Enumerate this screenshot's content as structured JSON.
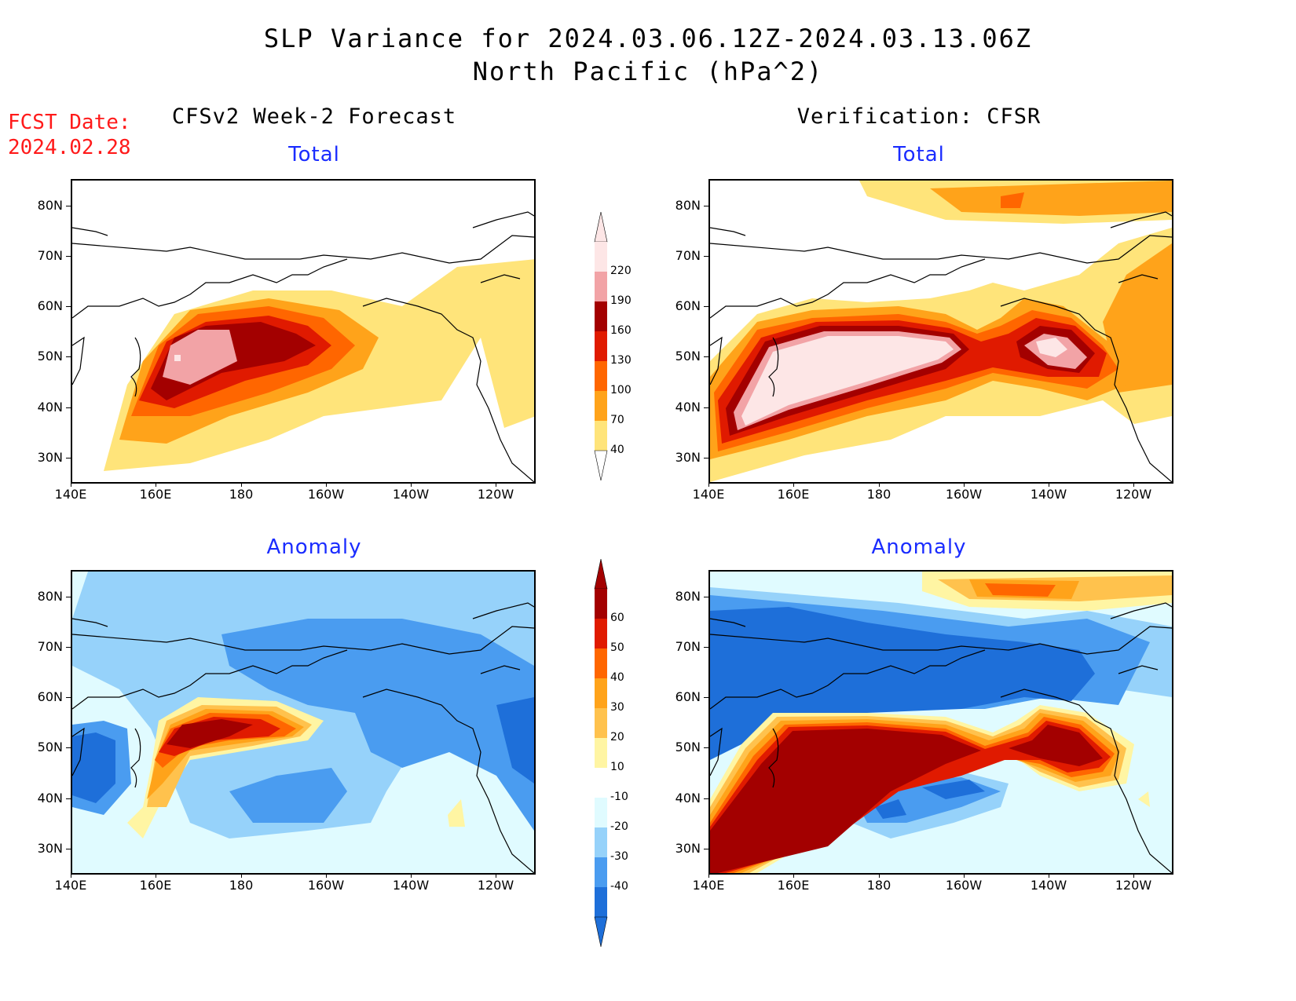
{
  "title": {
    "line1": "SLP Variance for 2024.03.06.12Z-2024.03.13.06Z",
    "line2": "North Pacific (hPa^2)"
  },
  "fcst_date": {
    "label": "FCST Date:",
    "value": "2024.02.28"
  },
  "columns": {
    "left": "CFSv2 Week-2 Forecast",
    "right": "Verification: CFSR"
  },
  "panels": {
    "top_left_title": "Total",
    "top_right_title": "Total",
    "bottom_left_title": "Anomaly",
    "bottom_right_title": "Anomaly"
  },
  "axes": {
    "lat_labels": [
      "80N",
      "70N",
      "60N",
      "50N",
      "40N",
      "30N"
    ],
    "lon_labels": [
      "140E",
      "160E",
      "180",
      "160W",
      "140W",
      "120W"
    ]
  },
  "colorbars": {
    "total": {
      "labels": [
        "220",
        "190",
        "160",
        "130",
        "100",
        "70",
        "40"
      ],
      "colors": [
        "#fde6e6",
        "#f2a3a6",
        "#a30000",
        "#e01a00",
        "#ff6600",
        "#ffa31a",
        "#ffe47a"
      ]
    },
    "anomaly": {
      "labels": [
        "60",
        "50",
        "40",
        "30",
        "20",
        "10",
        "-10",
        "-20",
        "-30",
        "-40"
      ],
      "colors": [
        "#a30000",
        "#e01a00",
        "#ff6600",
        "#ffa31a",
        "#ffc24d",
        "#fff5a3",
        "#ffffff",
        "#e0fbff",
        "#96d2fa",
        "#4a9cf0",
        "#1e6fd9"
      ]
    }
  }
}
